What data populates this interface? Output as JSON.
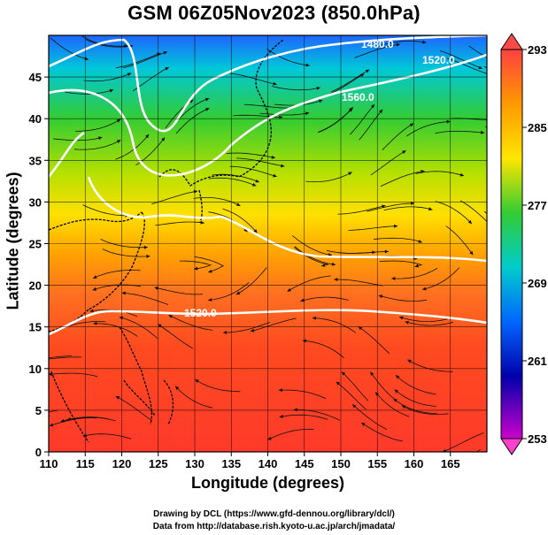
{
  "title": "GSM 06Z05Nov2023 (850.0hPa)",
  "xlabel": "Longitude (degrees)",
  "ylabel": "Latitude  (degrees)",
  "credits": [
    "Drawing by DCL (https://www.gfd-dennou.org/library/dcl/)",
    "Data from http://database.rish.kyoto-u.ac.jp/arch/jmadata/"
  ],
  "map": {
    "lon_range": [
      110,
      170
    ],
    "lat_range": [
      0,
      50
    ],
    "lon_ticks": [
      "110",
      "115",
      "120",
      "125",
      "130",
      "135",
      "140",
      "145",
      "150",
      "155",
      "160",
      "165"
    ],
    "lat_ticks": [
      "0",
      "5",
      "10",
      "15",
      "20",
      "25",
      "30",
      "35",
      "40",
      "45"
    ],
    "grid": true,
    "contour_labels": [
      "1480.0",
      "1520.0",
      "1560.0",
      "1520.0"
    ],
    "colorbar": {
      "ticks": [
        "293",
        "285",
        "277",
        "269",
        "261",
        "253"
      ],
      "colors": [
        "#ff4040",
        "#ff9900",
        "#ffe600",
        "#33cc33",
        "#00cccc",
        "#0066ff",
        "#0000aa",
        "#cc00cc"
      ]
    }
  }
}
